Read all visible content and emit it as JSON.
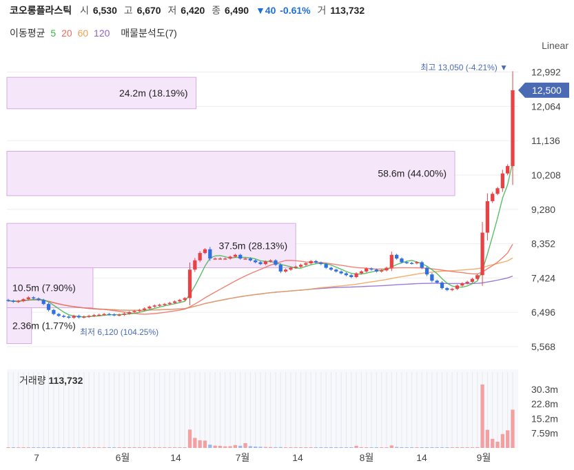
{
  "header": {
    "stock_name": "코오롱플라스틱",
    "open_label": "시",
    "open_value": "6,530",
    "high_label": "고",
    "high_value": "6,670",
    "low_label": "저",
    "low_value": "6,420",
    "close_label": "종",
    "close_value": "6,490",
    "change_value": "▼40",
    "change_pct": "-0.61%",
    "volume_label": "거",
    "volume_value": "113,732"
  },
  "moving_average": {
    "label": "이동평균",
    "periods": [
      {
        "value": "5",
        "color": "#3cb44b"
      },
      {
        "value": "20",
        "color": "#f06a5a"
      },
      {
        "value": "60",
        "color": "#f0a050"
      },
      {
        "value": "120",
        "color": "#8a63d2"
      }
    ],
    "volume_profile_label": "매물분석도(7)"
  },
  "scale_mode": "Linear",
  "volume_panel": {
    "label": "거래량",
    "value": "113,732"
  },
  "colors": {
    "up": "#e94244",
    "down": "#2f6fe0",
    "profile_fill": "#f6e6fa",
    "profile_stroke": "#d6a8e3",
    "last_price_badge": "#4a6bb4"
  },
  "chart_data": {
    "type": "candlestick",
    "y_axis_ticks": [
      "12,992",
      "12,064",
      "11,136",
      "10,208",
      "9,280",
      "8,352",
      "7,424",
      "6,496",
      "5,568"
    ],
    "ylim": [
      5400,
      13300
    ],
    "x_axis_ticks": [
      "7",
      "6월",
      "14",
      "7월",
      "14",
      "8월",
      "14",
      "9월"
    ],
    "last_price": "12,500",
    "high_annotation": {
      "label": "최고",
      "value": "13,050 (-4.21%)"
    },
    "low_annotation": {
      "label": "최저",
      "value": "6,120 (104.25%)"
    },
    "volume_profile": [
      {
        "label": "24.2m (18.19%)",
        "price_from": 12000,
        "price_to": 12850,
        "share": 0.1819
      },
      {
        "label": "58.6m (44.00%)",
        "price_from": 9650,
        "price_to": 10850,
        "share": 0.44
      },
      {
        "label": "37.5m (28.13%)",
        "price_from": 7700,
        "price_to": 8900,
        "share": 0.2813
      },
      {
        "label": "10.5m (7.90%)",
        "price_from": 6620,
        "price_to": 7700,
        "share": 0.079
      },
      {
        "label": "2.36m (1.77%)",
        "price_from": 5650,
        "price_to": 6620,
        "share": 0.0177
      }
    ],
    "close": [
      6810,
      6780,
      6800,
      6850,
      6900,
      6870,
      6830,
      6720,
      6560,
      6450,
      6400,
      6380,
      6350,
      6400,
      6360,
      6380,
      6400,
      6420,
      6430,
      6450,
      6440,
      6420,
      6430,
      6460,
      6500,
      6530,
      6560,
      6600,
      6650,
      6680,
      6700,
      6720,
      6750,
      6790,
      6830,
      6880,
      7650,
      7900,
      8100,
      8200,
      7950,
      7950,
      7950,
      7950,
      8000,
      8050,
      7950,
      7950,
      7900,
      7850,
      7800,
      7870,
      7900,
      7780,
      7600,
      7650,
      7700,
      7730,
      7780,
      7820,
      7880,
      7840,
      7800,
      7700,
      7650,
      7600,
      7550,
      7500,
      7450,
      7550,
      7600,
      7680,
      7650,
      7600,
      7630,
      7700,
      8050,
      7950,
      7850,
      7830,
      7820,
      7850,
      7700,
      7520,
      7350,
      7300,
      7150,
      7100,
      7130,
      7220,
      7280,
      7320,
      7400,
      7500,
      8650,
      9500,
      9700,
      9850,
      10250,
      10450,
      12500
    ],
    "volume_axis_ticks": [
      "30.3m",
      "22.8m",
      "15.2m",
      "7.59m"
    ],
    "volume_max": 33500000,
    "volume": [
      120000,
      110000,
      90000,
      150000,
      100000,
      90000,
      80000,
      200000,
      120000,
      100000,
      90000,
      80000,
      90000,
      70000,
      80000,
      80000,
      70000,
      90000,
      100000,
      90000,
      110000,
      90000,
      100000,
      120000,
      130000,
      140000,
      130000,
      150000,
      160000,
      150000,
      140000,
      150000,
      160000,
      150000,
      200000,
      180000,
      9500000,
      5200000,
      4000000,
      3800000,
      1700000,
      1200000,
      1100000,
      800000,
      900000,
      1500000,
      1100000,
      2500000,
      900000,
      700000,
      600000,
      500000,
      450000,
      400000,
      450000,
      350000,
      300000,
      350000,
      300000,
      350000,
      300000,
      250000,
      300000,
      250000,
      220000,
      250000,
      200000,
      220000,
      250000,
      1100000,
      400000,
      300000,
      250000,
      300000,
      250000,
      350000,
      1300000,
      500000,
      300000,
      250000,
      200000,
      200000,
      250000,
      300000,
      200000,
      180000,
      150000,
      150000,
      120000,
      200000,
      250000,
      300000,
      350000,
      400000,
      32800000,
      9400000,
      4700000,
      3200000,
      7200000,
      9100000,
      19800000
    ]
  }
}
